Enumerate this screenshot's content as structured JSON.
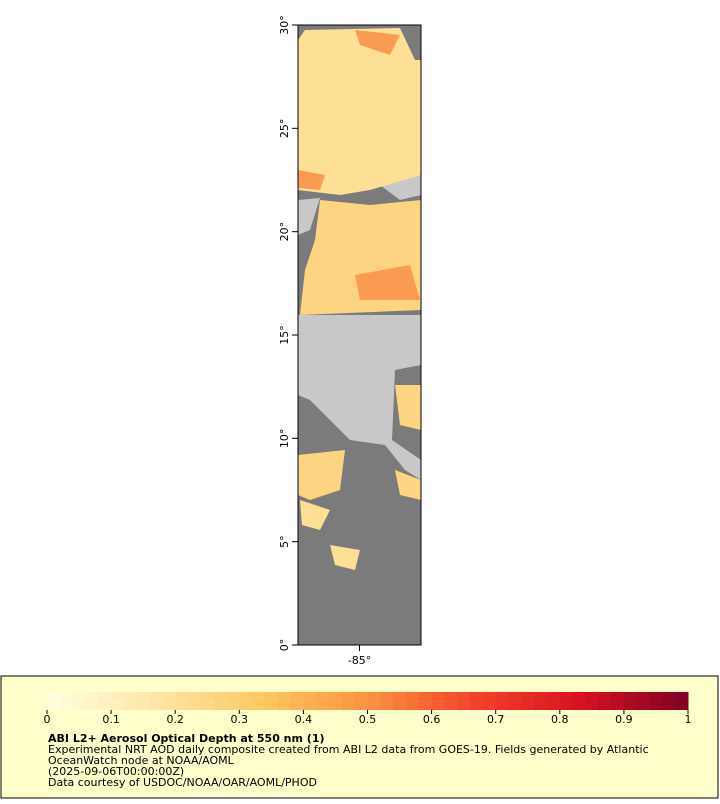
{
  "map": {
    "xlim": [
      -88,
      -82
    ],
    "ylim": [
      0,
      30
    ],
    "xticks": [
      {
        "value": -85,
        "label": "-85°"
      }
    ],
    "yticks": [
      {
        "value": 0,
        "label": "0°"
      },
      {
        "value": 5,
        "label": "5°"
      },
      {
        "value": 10,
        "label": "10°"
      },
      {
        "value": 15,
        "label": "15°"
      },
      {
        "value": 20,
        "label": "20°"
      },
      {
        "value": 25,
        "label": "25°"
      },
      {
        "value": 30,
        "label": "30°"
      }
    ]
  },
  "colorbar": {
    "range": [
      0,
      1
    ],
    "ticks": [
      0,
      0.1,
      0.2,
      0.3,
      0.4,
      0.5,
      0.6,
      0.7,
      0.8,
      0.9,
      1
    ],
    "colors": [
      "#ffffe0",
      "#fee6a8",
      "#fdc963",
      "#fd9240",
      "#f5432a",
      "#d7121f",
      "#800026"
    ]
  },
  "legend": {
    "title": "ABI L2+ Aerosol Optical Depth at 550 nm (1)",
    "lines": [
      "Experimental NRT AOD daily composite created from ABI L2 data from GOES-19. Fields generated by Atlantic",
      "OceanWatch node at NOAA/AOML",
      "(2025-09-06T00:00:00Z)",
      "Data courtesy of USDOC/NOAA/OAR/AOML/PHOD"
    ]
  }
}
